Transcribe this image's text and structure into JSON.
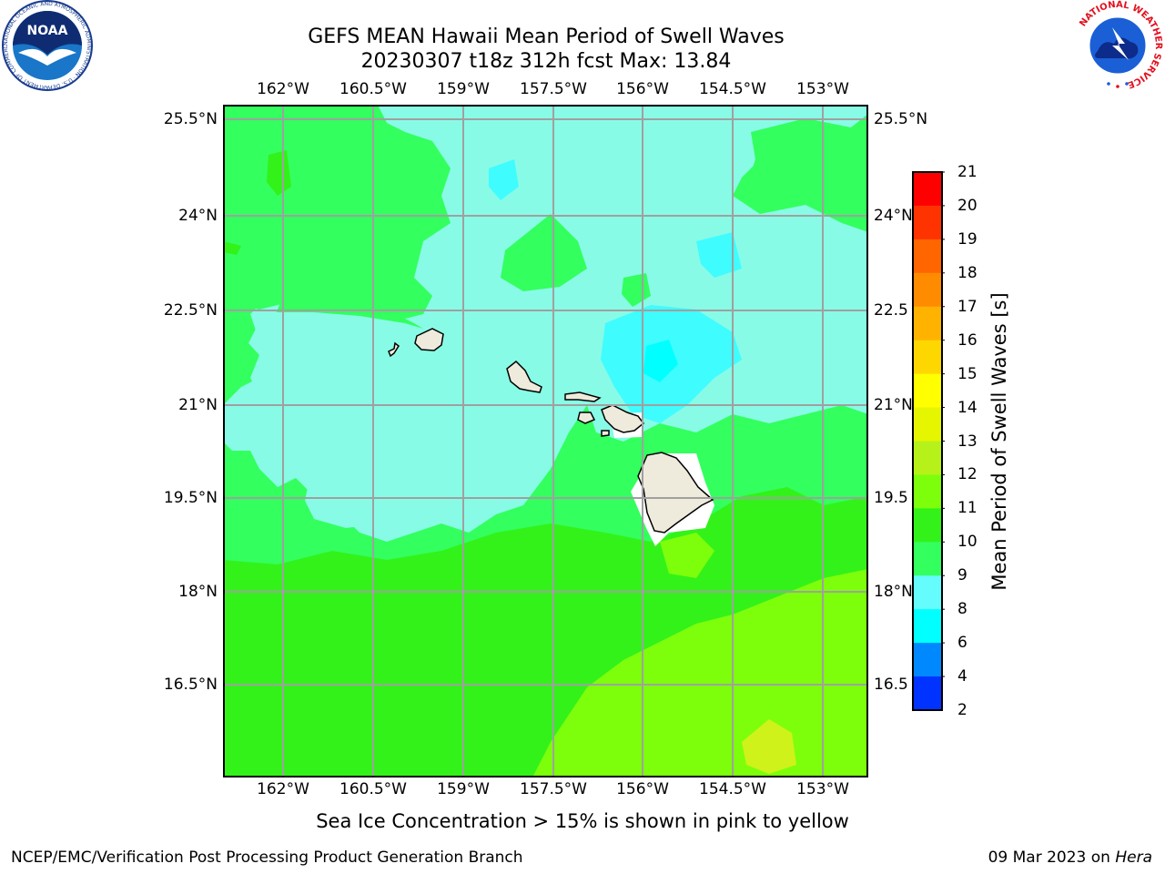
{
  "header": {
    "title_line1": "GEFS MEAN Hawaii Mean Period of Swell Waves",
    "title_line2": "20230307 t18z 312h fcst   Max: 13.84"
  },
  "map": {
    "lon_ticks": [
      "162°W",
      "160.5°W",
      "159°W",
      "157.5°W",
      "156°W",
      "154.5°W",
      "153°W"
    ],
    "lat_ticks": [
      "25.5°N",
      "24°N",
      "22.5°N",
      "21°N",
      "19.5°N",
      "18°N",
      "16.5°N"
    ],
    "lat_ticks_right": [
      "25.5°N",
      "24°N",
      "22.5",
      "21°N",
      "19.5",
      "18°N",
      "16.5"
    ],
    "islands": [
      "Kauai",
      "Niihau",
      "Oahu",
      "Molokai",
      "Lanai",
      "Maui",
      "Kahoolawe",
      "Hawaii"
    ],
    "colors": {
      "land": "#efebdc",
      "period_9_10": "#88fbe6",
      "period_10_11": "#33ff5f",
      "period_11_12": "#33f21a",
      "period_12_13": "#7dff0b",
      "period_13_14": "#cff21a",
      "period_8_9": "#3ffcff"
    }
  },
  "colorbar": {
    "title": "Mean Period of Swell Waves [s]",
    "ticks": [
      "21",
      "20",
      "19",
      "18",
      "17",
      "16",
      "15",
      "14",
      "13",
      "12",
      "11",
      "10",
      "9",
      "8",
      "6",
      "4",
      "2"
    ],
    "colors": [
      "#ff0000",
      "#ff3300",
      "#ff6600",
      "#ff8c00",
      "#ffb300",
      "#ffd700",
      "#ffff00",
      "#e6f500",
      "#b6f21a",
      "#7dff0b",
      "#33f21a",
      "#33ff5f",
      "#88fbe6",
      "#65fcfd",
      "#00ffff",
      "#0088ff",
      "#0033ff",
      "#0000ff"
    ]
  },
  "caption": "Sea Ice Concentration > 15% is shown in pink to yellow",
  "footer": {
    "left": "NCEP/EMC/Verification Post Processing Product Generation Branch",
    "date": "09 Mar 2023 on ",
    "host": "Hera"
  },
  "logos": {
    "noaa_label": "NOAA",
    "noaa_ring_text": "NATIONAL OCEANIC AND ATMOSPHERIC ADMINISTRATION · U.S. DEPARTMENT OF COMMERCE",
    "nws_ring_text": "NATIONAL WEATHER SERVICE"
  }
}
